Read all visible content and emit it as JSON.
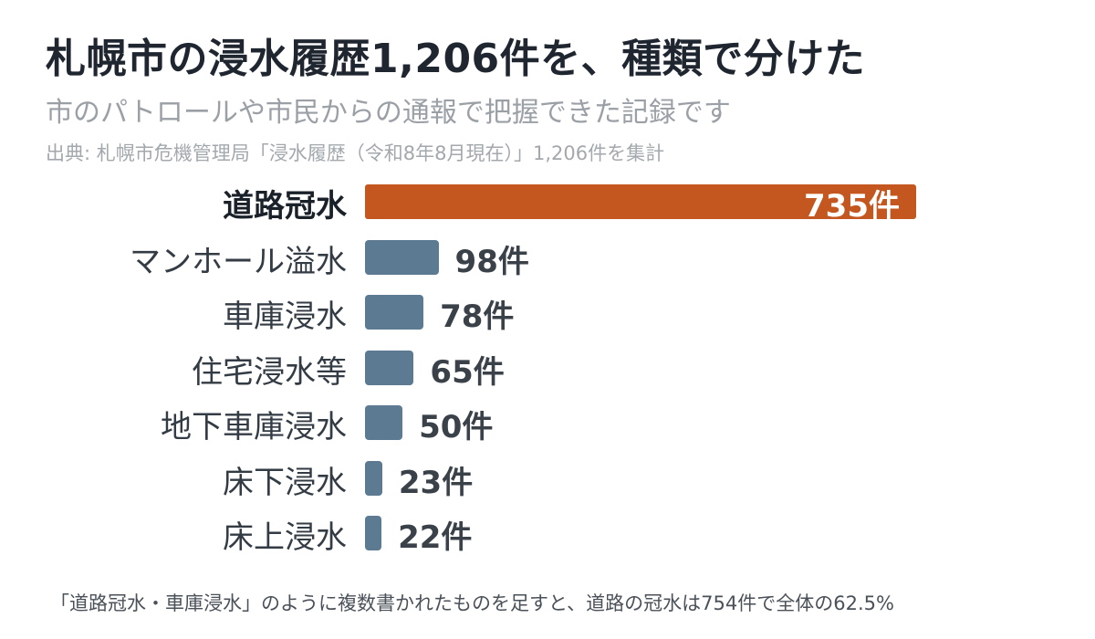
{
  "title": "札幌市の浸水履歴1,206件を、種類で分けた",
  "subtitle": "市のパトロールや市民からの通報で把握できた記録です",
  "source": "出典: 札幌市危機管理局「浸水履歴（令和8年8月現在）」1,206件を集計",
  "footnote": "「道路冠水・車庫浸水」のように複数書かれたものを足すと、道路の冠水は754件で全体の62.5%",
  "colors": {
    "highlight": "#c4571f",
    "bar": "#5c7b92"
  },
  "chart_data": {
    "type": "bar",
    "orientation": "horizontal",
    "categories": [
      "道路冠水",
      "マンホール溢水",
      "車庫浸水",
      "住宅浸水等",
      "地下車庫浸水",
      "床下浸水",
      "床上浸水"
    ],
    "values": [
      735,
      98,
      78,
      65,
      50,
      23,
      22
    ],
    "value_labels": [
      "735件",
      "98件",
      "78件",
      "65件",
      "50件",
      "23件",
      "22件"
    ],
    "highlight_index": 0,
    "xlim": [
      0,
      735
    ],
    "grid": false,
    "legend": "none"
  }
}
